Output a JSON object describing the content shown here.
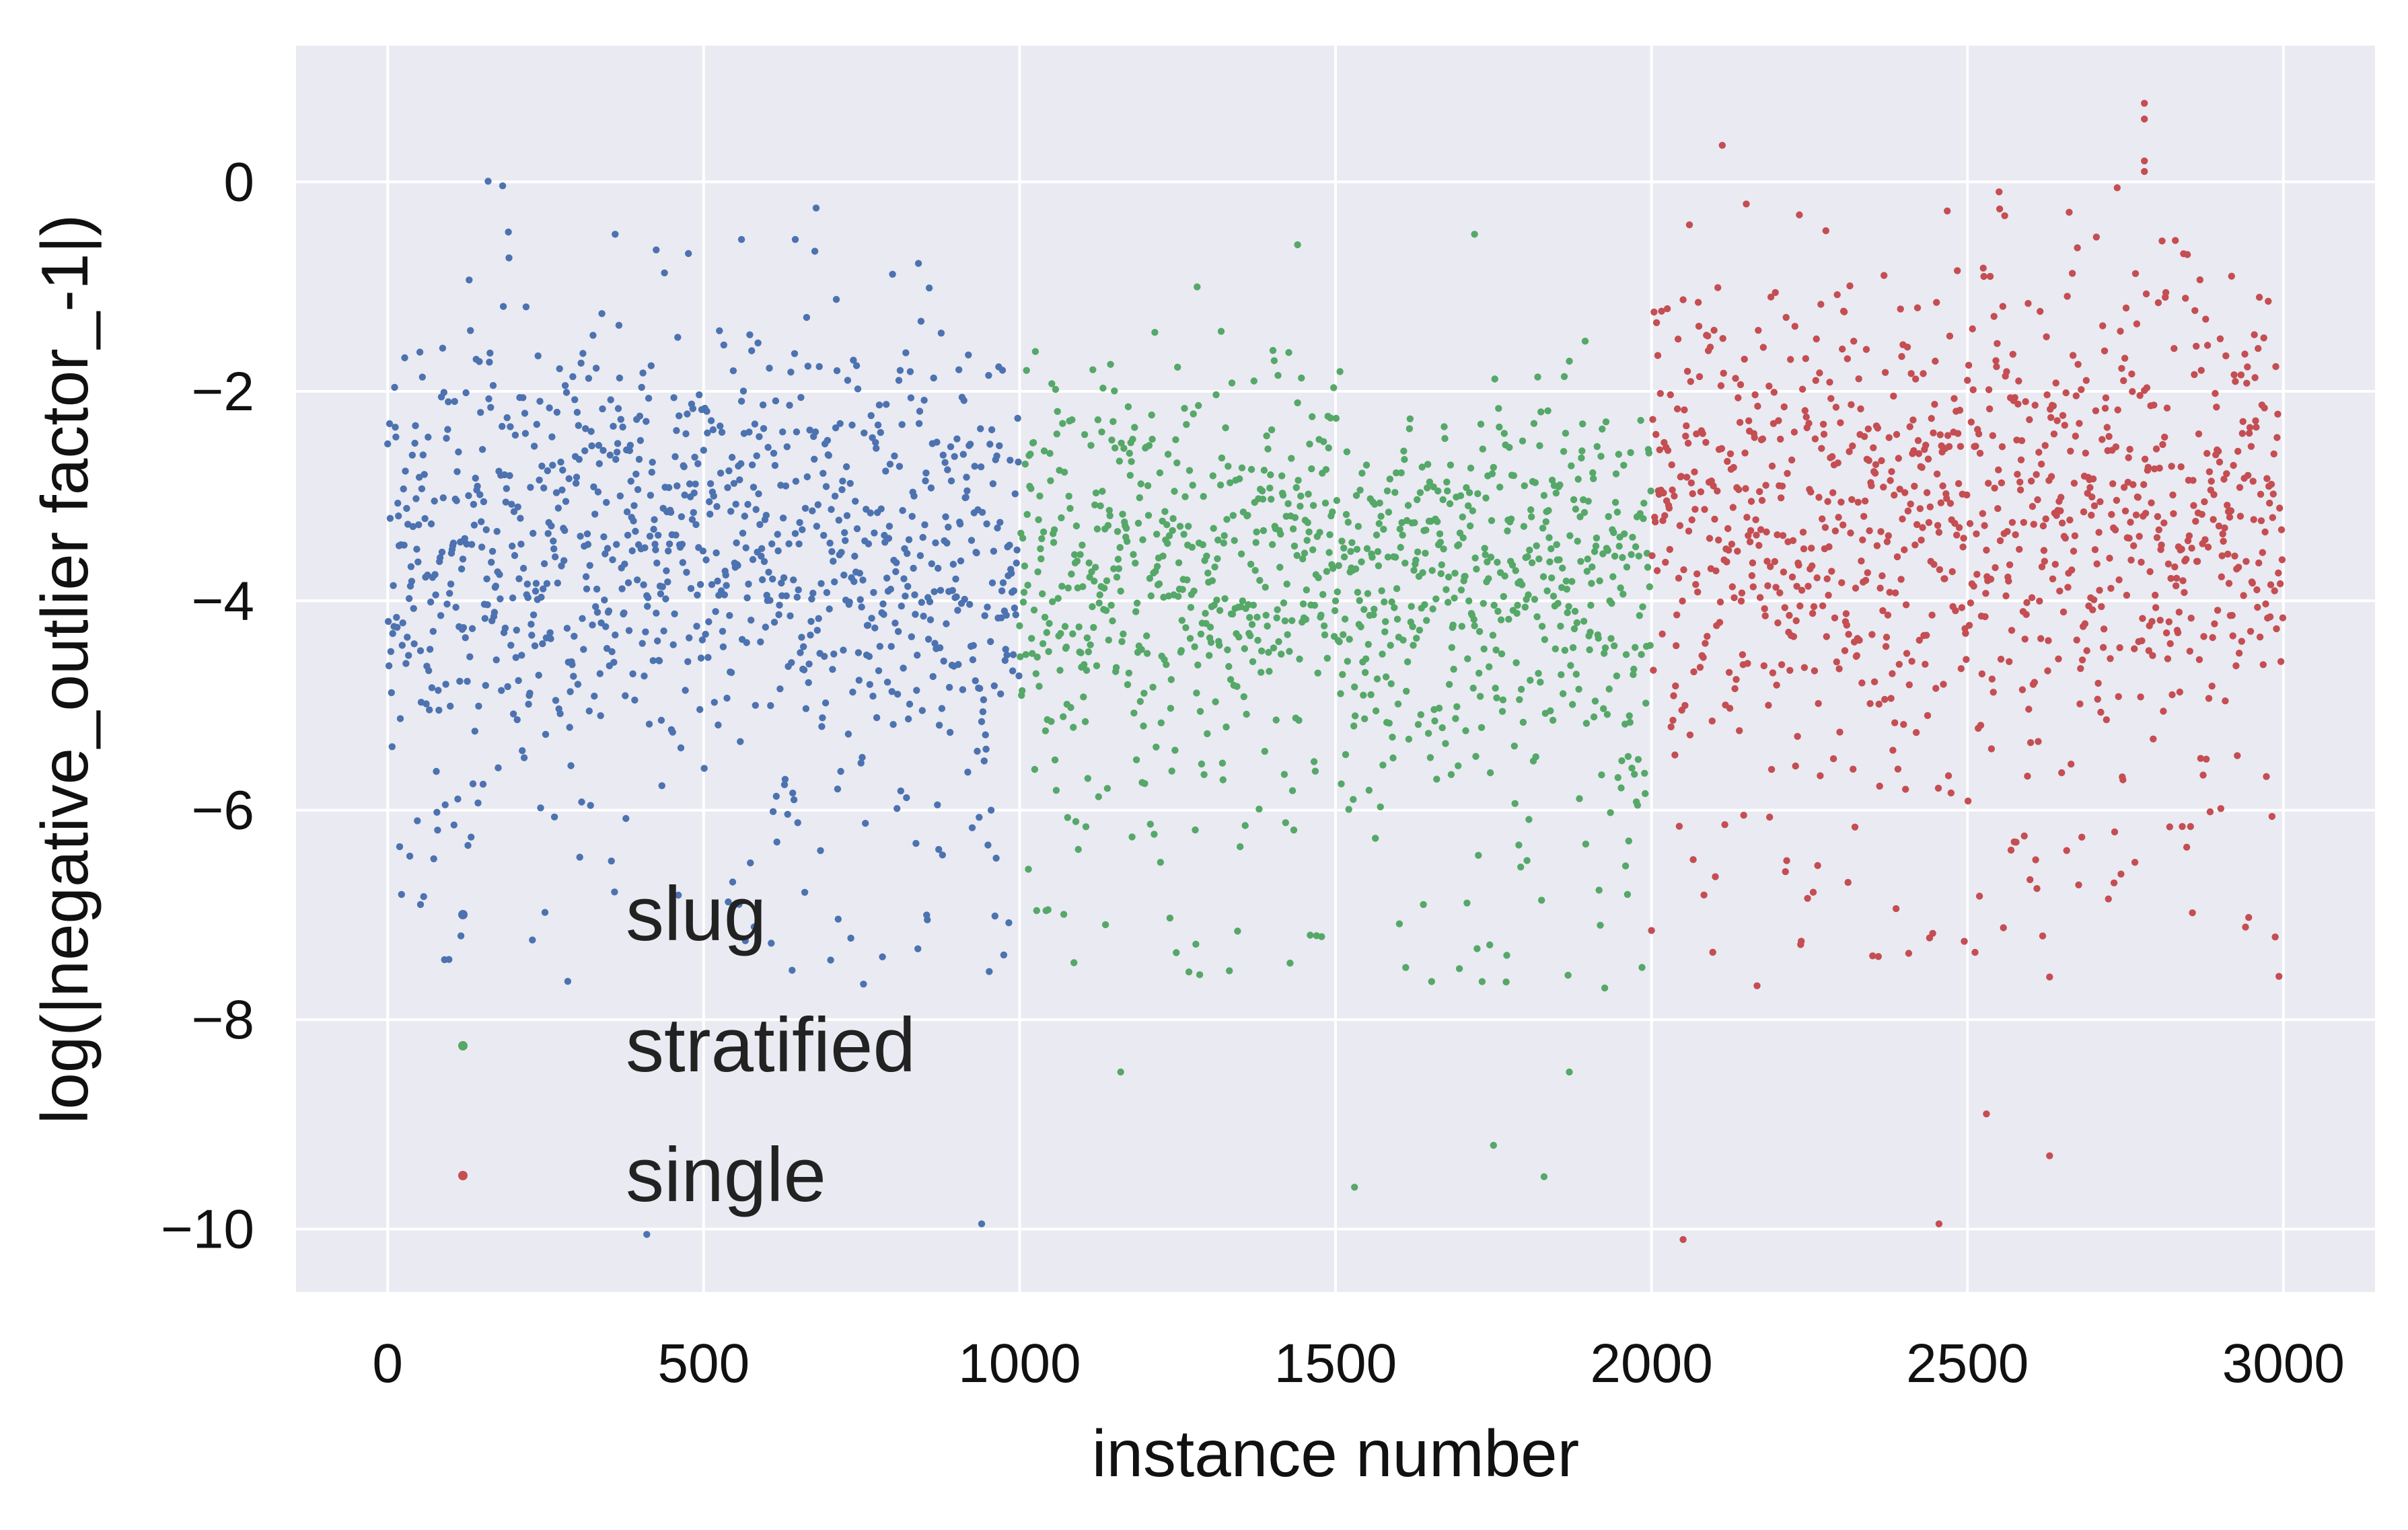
{
  "chart_data": {
    "type": "scatter",
    "title": "",
    "xlabel": "instance number",
    "ylabel": "log(|negative_outlier factor_-1|)",
    "xlim": [
      -145,
      3145
    ],
    "ylim": [
      -10.6,
      1.3
    ],
    "x_ticks": [
      0,
      500,
      1000,
      1500,
      2000,
      2500,
      3000
    ],
    "y_ticks": [
      0,
      -2,
      -4,
      -6,
      -8,
      -10
    ],
    "x_tick_labels": [
      "0",
      "500",
      "1000",
      "1500",
      "2000",
      "2500",
      "3000"
    ],
    "y_tick_labels": [
      "0",
      "−2",
      "−4",
      "−6",
      "−8",
      "−10"
    ],
    "grid": true,
    "background": "#eaeaf2",
    "legend": {
      "placement": "lower-left"
    },
    "series": [
      {
        "name": "slug",
        "color": "#4c72b0",
        "x_range": [
          0,
          999
        ],
        "n_points": 1000,
        "typical_band": [
          -5.5,
          -1.2
        ],
        "center": -3.5,
        "notable_points": [
          [
            52,
            -6.9
          ],
          [
            410,
            -10.05
          ],
          [
            940,
            -9.95
          ],
          [
            360,
            -0.5
          ],
          [
            560,
            -0.55
          ],
          [
            645,
            -0.55
          ],
          [
            425,
            -0.65
          ]
        ]
      },
      {
        "name": "stratified",
        "color": "#55a868",
        "x_range": [
          1000,
          1999
        ],
        "n_points": 1000,
        "typical_band": [
          -5.5,
          -1.8
        ],
        "center": -3.7,
        "notable_points": [
          [
            1530,
            -9.6
          ],
          [
            1750,
            -9.2
          ],
          [
            1830,
            -9.5
          ],
          [
            1870,
            -8.5
          ],
          [
            1160,
            -8.5
          ],
          [
            1720,
            -0.5
          ],
          [
            1440,
            -0.6
          ]
        ]
      },
      {
        "name": "single",
        "color": "#c44e52",
        "x_range": [
          2000,
          2999
        ],
        "n_points": 1000,
        "typical_band": [
          -5.5,
          -1.0
        ],
        "center": -3.2,
        "notable_points": [
          [
            2050,
            -10.1
          ],
          [
            2455,
            -9.95
          ],
          [
            2780,
            0.75
          ],
          [
            2780,
            0.6
          ],
          [
            2780,
            0.2
          ],
          [
            2780,
            0.1
          ],
          [
            2530,
            -8.9
          ],
          [
            2630,
            -9.3
          ]
        ]
      }
    ]
  }
}
